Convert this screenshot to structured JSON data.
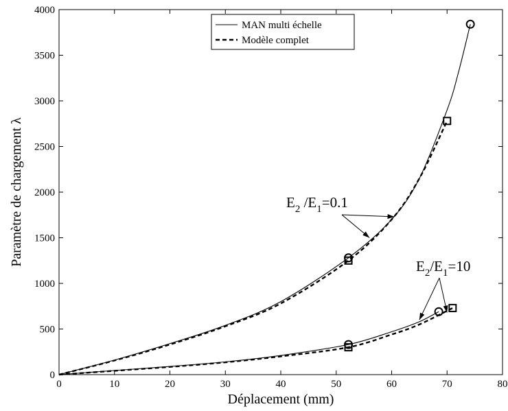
{
  "chart_data": {
    "type": "line",
    "xlabel": "Déplacement (mm)",
    "ylabel": "Paramètre de chargement  λ",
    "xlim": [
      0,
      80
    ],
    "ylim": [
      0,
      4000
    ],
    "xticks": [
      0,
      10,
      20,
      30,
      40,
      50,
      60,
      70,
      80
    ],
    "yticks": [
      0,
      500,
      1000,
      1500,
      2000,
      2500,
      3000,
      3500,
      4000
    ],
    "grid": false,
    "legend": {
      "placement": "top-center",
      "entries": [
        {
          "label": "MAN multi échelle",
          "style": "solid"
        },
        {
          "label": "Modèle complet",
          "style": "dashed"
        }
      ]
    },
    "series": [
      {
        "group": "E2/E1=0.1",
        "style": "solid",
        "x": [
          0,
          10,
          20,
          30,
          40,
          52.2,
          60,
          65,
          70,
          72,
          74.2
        ],
        "y": [
          0,
          160,
          340,
          540,
          800,
          1280,
          1700,
          2150,
          2900,
          3300,
          3840
        ],
        "markers": [
          {
            "x": 52.2,
            "y": 1280,
            "shape": "circle"
          },
          {
            "x": 74.2,
            "y": 3840,
            "shape": "circle"
          }
        ]
      },
      {
        "group": "E2/E1=0.1",
        "style": "dashed",
        "x": [
          0,
          10,
          20,
          30,
          40,
          52.2,
          60,
          65,
          70
        ],
        "y": [
          0,
          155,
          330,
          530,
          780,
          1250,
          1700,
          2150,
          2780
        ],
        "markers": [
          {
            "x": 52.2,
            "y": 1250,
            "shape": "square"
          },
          {
            "x": 70,
            "y": 2780,
            "shape": "square"
          }
        ]
      },
      {
        "group": "E2/E1=10",
        "style": "solid",
        "x": [
          0,
          10,
          20,
          30,
          40,
          52.2,
          60,
          65,
          68.5
        ],
        "y": [
          0,
          45,
          90,
          140,
          210,
          330,
          470,
          580,
          690
        ],
        "markers": [
          {
            "x": 52.2,
            "y": 330,
            "shape": "circle"
          },
          {
            "x": 68.5,
            "y": 690,
            "shape": "circle"
          }
        ]
      },
      {
        "group": "E2/E1=10",
        "style": "dashed",
        "x": [
          0,
          10,
          20,
          30,
          40,
          52.2,
          60,
          65,
          71
        ],
        "y": [
          0,
          42,
          85,
          135,
          200,
          300,
          440,
          550,
          730
        ],
        "markers": [
          {
            "x": 52.2,
            "y": 300,
            "shape": "square"
          },
          {
            "x": 71,
            "y": 730,
            "shape": "square"
          }
        ]
      }
    ],
    "annotations": [
      {
        "label": {
          "E": "E",
          "sub2": "2",
          "slash": " /E",
          "sub1": "1",
          "value": "=0.1"
        },
        "arrow_targets": [
          {
            "x": 56,
            "y": 1500
          },
          {
            "x": 60.5,
            "y": 1730
          }
        ]
      },
      {
        "label": {
          "E": "E",
          "sub2": "2",
          "slash": "/E",
          "sub1": "1",
          "value": "=10"
        },
        "arrow_targets": [
          {
            "x": 65,
            "y": 600
          },
          {
            "x": 70,
            "y": 680
          }
        ]
      }
    ]
  }
}
